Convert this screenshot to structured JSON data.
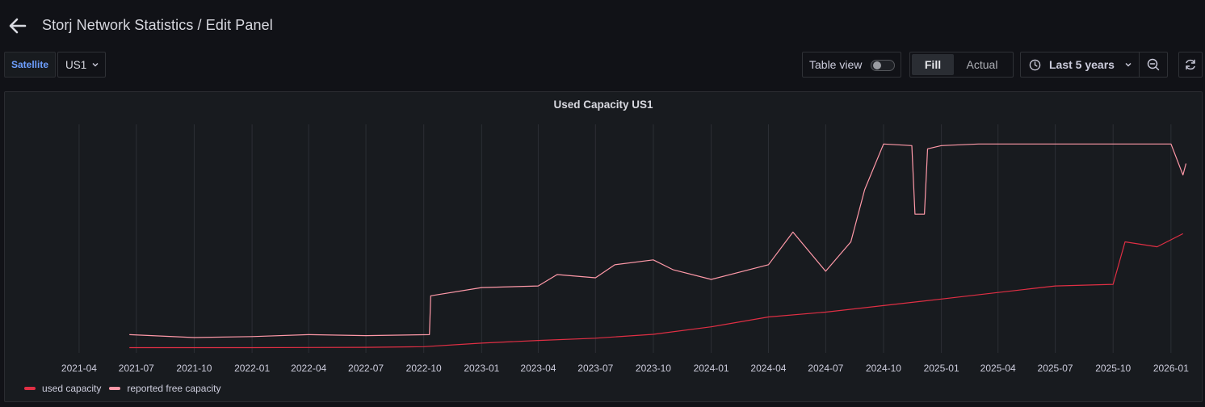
{
  "header": {
    "title": "Storj Network Statistics / Edit Panel"
  },
  "toolbar": {
    "variable_label": "Satellite",
    "variable_value": "US1",
    "table_view_label": "Table view",
    "fill_label": "Fill",
    "actual_label": "Actual",
    "time_range_label": "Last 5 years"
  },
  "icons": [
    "arrow-left-icon",
    "chevron-down-icon",
    "clock-icon",
    "zoom-out-icon",
    "refresh-icon"
  ],
  "colors": {
    "used": "#e02f44",
    "free": "#ff99a8",
    "accent": "#6e9fff"
  },
  "chart_data": {
    "type": "line",
    "title": "Used Capacity US1",
    "xlabel": "",
    "ylabel": "",
    "x_range": [
      "2021-02",
      "2026-02"
    ],
    "x_tick_labels": [
      "2021-04",
      "2021-07",
      "2021-10",
      "2022-01",
      "2022-04",
      "2022-07",
      "2022-10",
      "2023-01",
      "2023-04",
      "2023-07",
      "2023-10",
      "2024-01",
      "2024-04",
      "2024-07",
      "2024-10",
      "2025-01",
      "2025-04",
      "2025-07",
      "2025-10",
      "2026-01"
    ],
    "y_axis_labels": "none shown",
    "grid": "vertical lines only",
    "legend_position": "bottom-left",
    "series": [
      {
        "name": "used capacity",
        "color": "#e02f44",
        "points": [
          [
            "2021-06-20",
            1.6
          ],
          [
            "2021-10-01",
            1.6
          ],
          [
            "2022-01-01",
            1.6
          ],
          [
            "2022-04-01",
            1.65
          ],
          [
            "2022-07-01",
            1.7
          ],
          [
            "2022-10-01",
            1.9
          ],
          [
            "2023-01-01",
            3.0
          ],
          [
            "2023-04-01",
            3.8
          ],
          [
            "2023-07-01",
            4.5
          ],
          [
            "2023-10-01",
            5.7
          ],
          [
            "2024-01-01",
            8.0
          ],
          [
            "2024-04-01",
            11.0
          ],
          [
            "2024-07-01",
            12.5
          ],
          [
            "2024-10-01",
            14.5
          ],
          [
            "2025-01-01",
            16.5
          ],
          [
            "2025-04-01",
            18.5
          ],
          [
            "2025-07-01",
            20.5
          ],
          [
            "2025-10-01",
            21.0
          ],
          [
            "2025-10-20",
            34.0
          ],
          [
            "2025-12-10",
            32.5
          ],
          [
            "2026-01-20",
            36.5
          ]
        ]
      },
      {
        "name": "reported free capacity",
        "color": "#ff99a8",
        "points": [
          [
            "2021-06-20",
            5.6
          ],
          [
            "2021-10-01",
            4.7
          ],
          [
            "2022-01-01",
            5.0
          ],
          [
            "2022-04-01",
            5.6
          ],
          [
            "2022-07-01",
            5.3
          ],
          [
            "2022-10-10",
            5.6
          ],
          [
            "2022-10-12",
            17.5
          ],
          [
            "2023-01-01",
            20.0
          ],
          [
            "2023-04-01",
            20.5
          ],
          [
            "2023-05-01",
            24.0
          ],
          [
            "2023-07-01",
            23.0
          ],
          [
            "2023-08-01",
            27.0
          ],
          [
            "2023-10-01",
            28.5
          ],
          [
            "2023-11-01",
            25.5
          ],
          [
            "2024-01-01",
            22.5
          ],
          [
            "2024-04-01",
            27.0
          ],
          [
            "2024-05-10",
            37.0
          ],
          [
            "2024-07-01",
            25.0
          ],
          [
            "2024-08-10",
            34.0
          ],
          [
            "2024-09-01",
            50.0
          ],
          [
            "2024-10-01",
            64.0
          ],
          [
            "2024-11-15",
            63.5
          ],
          [
            "2024-11-20",
            42.5
          ],
          [
            "2024-12-05",
            42.5
          ],
          [
            "2024-12-10",
            62.5
          ],
          [
            "2025-01-01",
            63.5
          ],
          [
            "2025-03-01",
            64.0
          ],
          [
            "2025-07-01",
            64.0
          ],
          [
            "2026-01-01",
            64.0
          ],
          [
            "2026-01-20",
            54.5
          ],
          [
            "2026-01-25",
            58.0
          ]
        ]
      }
    ]
  }
}
